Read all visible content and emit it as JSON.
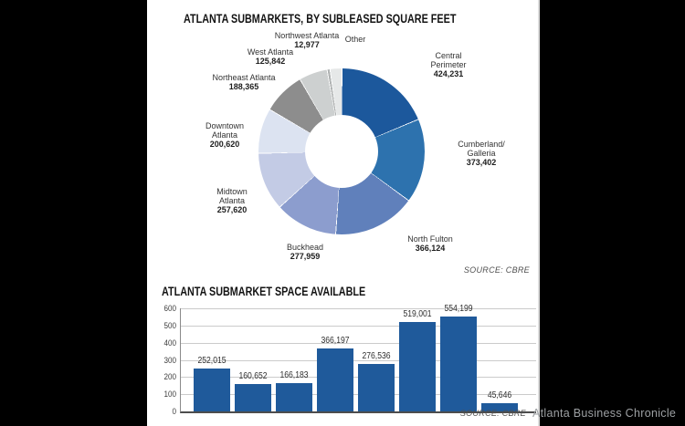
{
  "watermark": "Atlanta Business Chronicle",
  "chart_data": [
    {
      "type": "pie",
      "donut": true,
      "title": "ATLANTA SUBMARKETS, BY SUBLEASED SQUARE FEET",
      "source": "SOURCE: CBRE",
      "legend_position": "around-slices",
      "slices": [
        {
          "name": "Central Perimeter",
          "name_lines": [
            "Central",
            "Perimeter"
          ],
          "value": 424231,
          "value_label": "424,231",
          "color": "#1c589c"
        },
        {
          "name": "Cumberland/Galleria",
          "name_lines": [
            "Cumberland/",
            "Galleria"
          ],
          "value": 373402,
          "value_label": "373,402",
          "color": "#2d72ae"
        },
        {
          "name": "North Fulton",
          "name_lines": [
            "North Fulton"
          ],
          "value": 366124,
          "value_label": "366,124",
          "color": "#6080bb"
        },
        {
          "name": "Buckhead",
          "name_lines": [
            "Buckhead"
          ],
          "value": 277959,
          "value_label": "277,959",
          "color": "#8c9dce"
        },
        {
          "name": "Midtown Atlanta",
          "name_lines": [
            "Midtown",
            "Atlanta"
          ],
          "value": 257620,
          "value_label": "257,620",
          "color": "#c3cbe5"
        },
        {
          "name": "Downtown Atlanta",
          "name_lines": [
            "Downtown",
            "Atlanta"
          ],
          "value": 200620,
          "value_label": "200,620",
          "color": "#dce3f1"
        },
        {
          "name": "Northeast Atlanta",
          "name_lines": [
            "Northeast Atlanta"
          ],
          "value": 188365,
          "value_label": "188,365",
          "color": "#8d8d8d"
        },
        {
          "name": "West Atlanta",
          "name_lines": [
            "West Atlanta"
          ],
          "value": 125842,
          "value_label": "125,842",
          "color": "#cdd0d0"
        },
        {
          "name": "Northwest Atlanta",
          "name_lines": [
            "Northwest Atlanta"
          ],
          "value": 12977,
          "value_label": "12,977",
          "color": "#b0b3b3"
        },
        {
          "name": "Other",
          "name_lines": [
            "Other"
          ],
          "value": null,
          "value_label": "",
          "color": "#e6e8e8"
        }
      ]
    },
    {
      "type": "bar",
      "title": "ATLANTA SUBMARKET SPACE AVAILABLE",
      "source": "SOURCE: CBRE",
      "grid": true,
      "bar_color": "#1f5a9b",
      "y_axis": {
        "ticks": [
          0,
          100,
          200,
          300,
          400,
          500,
          600
        ],
        "range": [
          0,
          600
        ]
      },
      "bars": [
        {
          "value": 252015,
          "label": "252,015"
        },
        {
          "value": 160652,
          "label": "160,652"
        },
        {
          "value": 166183,
          "label": "166,183"
        },
        {
          "value": 366197,
          "label": "366,197"
        },
        {
          "value": 276536,
          "label": "276,536"
        },
        {
          "value": 519001,
          "label": "519,001"
        },
        {
          "value": 554199,
          "label": "554,199"
        },
        {
          "value": 45646,
          "label": "45,646"
        }
      ]
    }
  ]
}
